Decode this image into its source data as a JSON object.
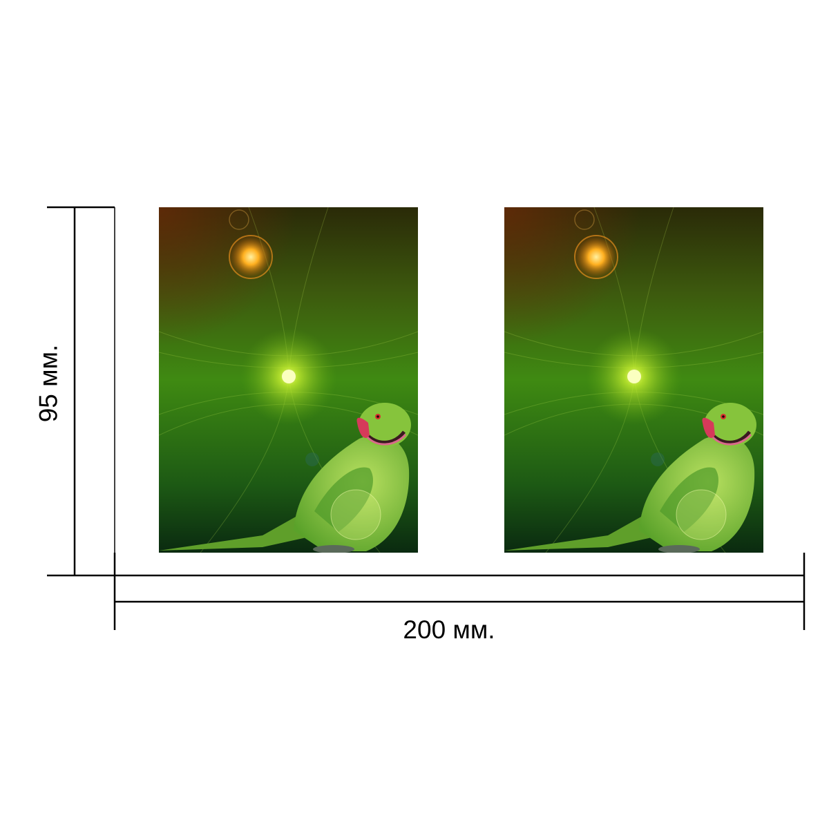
{
  "dimensions": {
    "width_label": "200 мм.",
    "height_label": "95 мм."
  },
  "cards": [
    {
      "subject": "green-parrot",
      "background": "green-fractal-glow"
    },
    {
      "subject": "green-parrot",
      "background": "green-fractal-glow"
    }
  ],
  "colors": {
    "background_dark": "#0a2a10",
    "background_green": "#3f8a12",
    "glow_center": "#d8ff40",
    "glow_orange": "#ffb020",
    "parrot_body": "#7cc23a",
    "beak": "#d63a5a",
    "line": "#000000"
  }
}
